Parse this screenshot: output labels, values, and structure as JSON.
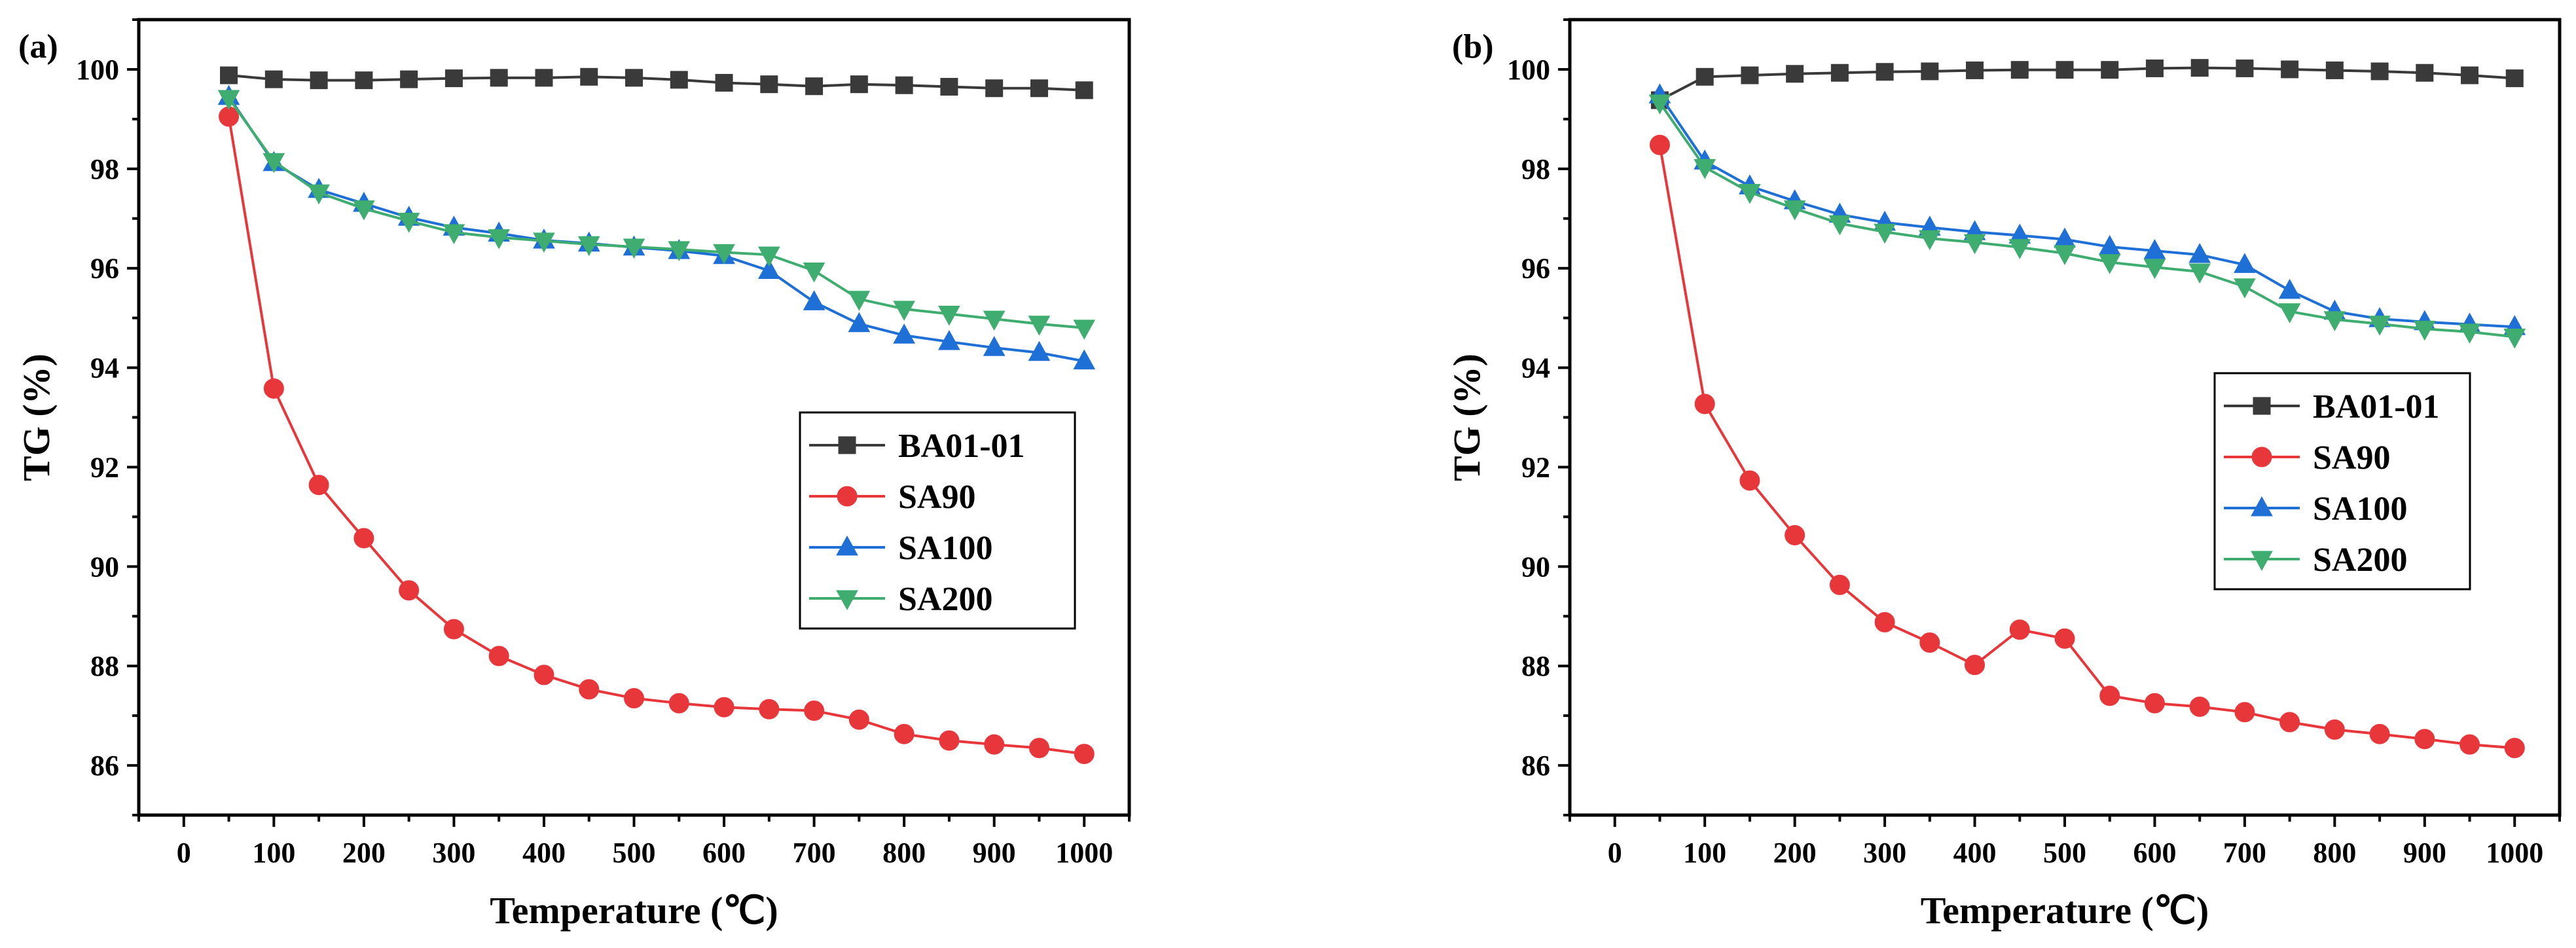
{
  "chart_data": [
    {
      "type": "line",
      "panel_label": "(a)",
      "title": "",
      "xlabel": "Temperature (℃)",
      "ylabel": "TG (%)",
      "xlim": [
        -50,
        1050
      ],
      "ylim": [
        85,
        101
      ],
      "xticks": [
        0,
        100,
        200,
        300,
        400,
        500,
        600,
        700,
        800,
        900,
        1000
      ],
      "yticks": [
        86,
        88,
        90,
        92,
        94,
        96,
        98,
        100
      ],
      "legend_position": "center-right",
      "x": [
        50,
        100,
        150,
        200,
        250,
        300,
        350,
        400,
        450,
        500,
        550,
        600,
        650,
        700,
        750,
        800,
        850,
        900,
        950,
        1000
      ],
      "series": [
        {
          "name": "BA01-01",
          "marker": "square",
          "color": "#3a3a3a",
          "values": [
            99.88,
            99.8,
            99.78,
            99.78,
            99.8,
            99.82,
            99.83,
            99.83,
            99.85,
            99.83,
            99.79,
            99.73,
            99.7,
            99.66,
            99.7,
            99.68,
            99.65,
            99.62,
            99.62,
            99.58
          ]
        },
        {
          "name": "SA90",
          "marker": "circle",
          "color": "#e8373a",
          "values": [
            99.05,
            93.58,
            91.64,
            90.57,
            89.52,
            88.74,
            88.2,
            87.82,
            87.53,
            87.35,
            87.25,
            87.17,
            87.13,
            87.1,
            86.92,
            86.63,
            86.5,
            86.42,
            86.35,
            86.23
          ]
        },
        {
          "name": "SA100",
          "marker": "triangle-up",
          "color": "#1e6fd6",
          "values": [
            99.45,
            98.12,
            97.58,
            97.3,
            97.02,
            96.82,
            96.7,
            96.56,
            96.5,
            96.42,
            96.35,
            96.25,
            95.95,
            95.32,
            94.88,
            94.65,
            94.52,
            94.4,
            94.3,
            94.13
          ]
        },
        {
          "name": "SA200",
          "marker": "triangle-down",
          "color": "#3fad6f",
          "values": [
            99.42,
            98.15,
            97.52,
            97.2,
            96.95,
            96.72,
            96.62,
            96.55,
            96.48,
            96.43,
            96.38,
            96.32,
            96.27,
            95.95,
            95.38,
            95.18,
            95.08,
            94.98,
            94.88,
            94.8
          ]
        }
      ]
    },
    {
      "type": "line",
      "panel_label": "(b)",
      "title": "",
      "xlabel": "Temperature (℃)",
      "ylabel": "TG (%)",
      "xlim": [
        -50,
        1050
      ],
      "ylim": [
        85,
        101
      ],
      "xticks": [
        0,
        100,
        200,
        300,
        400,
        500,
        600,
        700,
        800,
        900,
        1000
      ],
      "yticks": [
        86,
        88,
        90,
        92,
        94,
        96,
        98,
        100
      ],
      "legend_position": "center-right",
      "x": [
        50,
        100,
        150,
        200,
        250,
        300,
        350,
        400,
        450,
        500,
        550,
        600,
        650,
        700,
        750,
        800,
        850,
        900,
        950,
        1000
      ],
      "series": [
        {
          "name": "BA01-01",
          "marker": "square",
          "color": "#3a3a3a",
          "values": [
            99.38,
            99.85,
            99.88,
            99.91,
            99.93,
            99.95,
            99.96,
            99.98,
            99.99,
            99.99,
            99.99,
            100.02,
            100.03,
            100.02,
            100.0,
            99.98,
            99.96,
            99.93,
            99.88,
            99.82
          ]
        },
        {
          "name": "SA90",
          "marker": "circle",
          "color": "#e8373a",
          "values": [
            98.48,
            93.27,
            91.73,
            90.63,
            89.63,
            88.88,
            88.47,
            88.02,
            88.73,
            88.55,
            87.4,
            87.25,
            87.18,
            87.07,
            86.87,
            86.72,
            86.63,
            86.53,
            86.42,
            86.35
          ]
        },
        {
          "name": "SA100",
          "marker": "triangle-up",
          "color": "#1e6fd6",
          "values": [
            99.48,
            98.15,
            97.65,
            97.35,
            97.08,
            96.92,
            96.82,
            96.73,
            96.66,
            96.58,
            96.43,
            96.35,
            96.27,
            96.07,
            95.55,
            95.13,
            94.98,
            94.92,
            94.87,
            94.82
          ]
        },
        {
          "name": "SA200",
          "marker": "triangle-down",
          "color": "#3fad6f",
          "values": [
            99.33,
            98.03,
            97.53,
            97.2,
            96.9,
            96.73,
            96.6,
            96.52,
            96.42,
            96.3,
            96.12,
            96.02,
            95.93,
            95.63,
            95.13,
            94.97,
            94.88,
            94.78,
            94.72,
            94.62
          ]
        }
      ]
    }
  ]
}
